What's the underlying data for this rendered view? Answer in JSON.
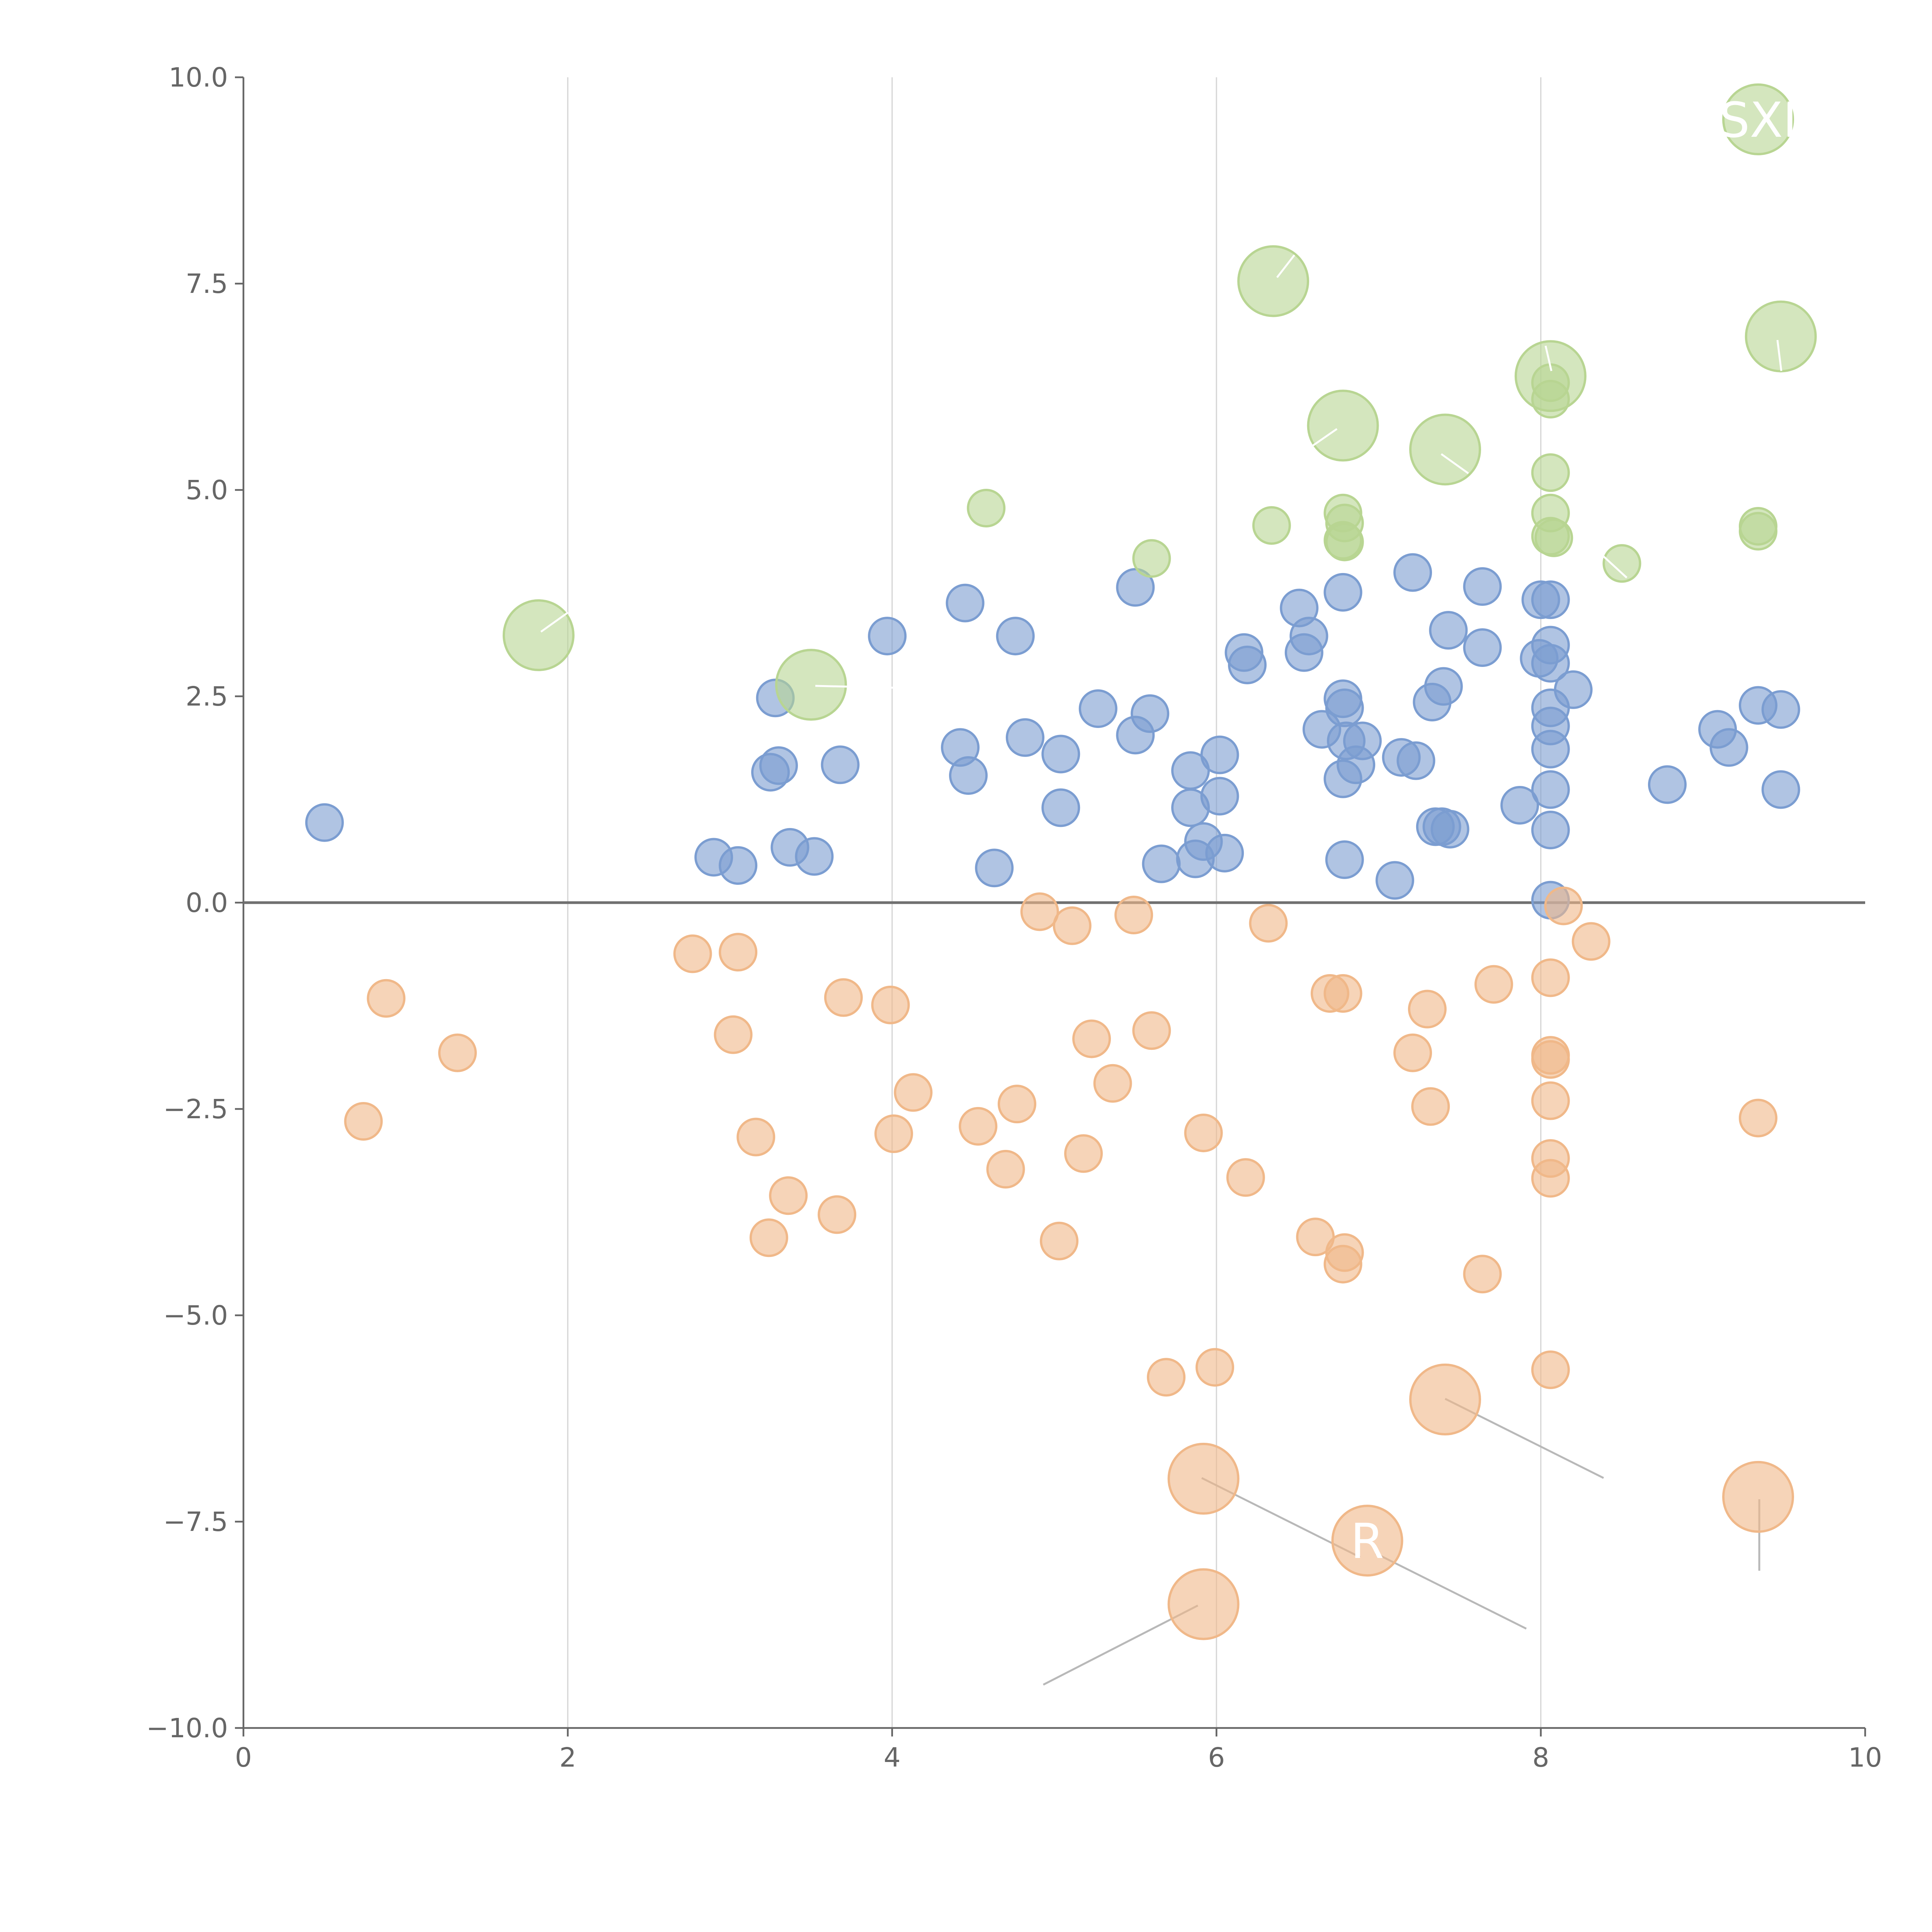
{
  "chart_data": {
    "type": "scatter",
    "title": "",
    "xlabel": "",
    "ylabel": "",
    "xlim": [
      0,
      10
    ],
    "ylim": [
      -10,
      10
    ],
    "x_ticks": [
      "0",
      "2",
      "4",
      "6",
      "8",
      "10"
    ],
    "y_ticks": [
      "10.0",
      "7.5",
      "5.0",
      "2.5",
      "0.0",
      "−2.5",
      "−5.0",
      "−7.5",
      "−10.0"
    ],
    "grid": "vertical",
    "legend": "none",
    "series": [
      {
        "color": "#7b9dd1",
        "size": "small",
        "points": [
          [
            0.5,
            0.97
          ],
          [
            2.9,
            0.55
          ],
          [
            3.05,
            0.45
          ],
          [
            3.25,
            1.58
          ],
          [
            3.3,
            1.66
          ],
          [
            3.28,
            2.48
          ],
          [
            3.37,
            0.67
          ],
          [
            3.52,
            0.56
          ],
          [
            3.68,
            1.67
          ],
          [
            3.97,
            3.23
          ],
          [
            4.42,
            1.88
          ],
          [
            4.45,
            3.63
          ],
          [
            4.47,
            1.54
          ],
          [
            4.63,
            0.42
          ],
          [
            4.76,
            3.23
          ],
          [
            4.82,
            2.0
          ],
          [
            5.04,
            1.8
          ],
          [
            5.04,
            1.15
          ],
          [
            5.27,
            2.35
          ],
          [
            5.5,
            3.82
          ],
          [
            5.5,
            2.03
          ],
          [
            5.59,
            2.29
          ],
          [
            5.66,
            0.47
          ],
          [
            5.84,
            1.6
          ],
          [
            5.84,
            1.15
          ],
          [
            5.87,
            0.53
          ],
          [
            5.92,
            0.74
          ],
          [
            6.02,
            1.79
          ],
          [
            6.02,
            1.29
          ],
          [
            6.05,
            0.6
          ],
          [
            6.17,
            3.03
          ],
          [
            6.19,
            2.88
          ],
          [
            6.51,
            3.57
          ],
          [
            6.54,
            3.03
          ],
          [
            6.57,
            3.23
          ],
          [
            6.65,
            2.1
          ],
          [
            6.78,
            3.76
          ],
          [
            6.78,
            2.47
          ],
          [
            6.79,
            2.36
          ],
          [
            6.8,
            1.96
          ],
          [
            6.78,
            1.5
          ],
          [
            6.79,
            0.52
          ],
          [
            6.86,
            1.67
          ],
          [
            6.9,
            1.96
          ],
          [
            7.1,
            0.27
          ],
          [
            7.14,
            1.76
          ],
          [
            7.23,
            1.72
          ],
          [
            7.21,
            4.0
          ],
          [
            7.33,
            2.43
          ],
          [
            7.4,
            2.62
          ],
          [
            7.43,
            3.3
          ],
          [
            7.35,
            0.92
          ],
          [
            7.39,
            0.92
          ],
          [
            7.44,
            0.89
          ],
          [
            7.64,
            3.83
          ],
          [
            7.64,
            3.09
          ],
          [
            7.87,
            1.18
          ],
          [
            7.99,
            2.96
          ],
          [
            8.0,
            3.67
          ],
          [
            8.06,
            3.67
          ],
          [
            8.06,
            3.12
          ],
          [
            8.06,
            2.9
          ],
          [
            8.06,
            2.36
          ],
          [
            8.06,
            2.14
          ],
          [
            8.06,
            1.86
          ],
          [
            8.06,
            1.37
          ],
          [
            8.06,
            0.88
          ],
          [
            8.06,
            0.03
          ],
          [
            8.2,
            2.58
          ],
          [
            8.78,
            1.43
          ],
          [
            9.09,
            2.1
          ],
          [
            9.16,
            1.88
          ],
          [
            9.34,
            2.39
          ],
          [
            9.48,
            2.34
          ],
          [
            9.48,
            1.37
          ]
        ]
      },
      {
        "color": "#f0b889",
        "size": "small",
        "points": [
          [
            0.88,
            -1.16
          ],
          [
            0.74,
            -2.65
          ],
          [
            1.32,
            -1.82
          ],
          [
            2.77,
            -0.62
          ],
          [
            3.05,
            -0.6
          ],
          [
            3.02,
            -1.6
          ],
          [
            3.16,
            -2.84
          ],
          [
            3.24,
            -4.06
          ],
          [
            3.36,
            -3.55
          ],
          [
            3.7,
            -1.15
          ],
          [
            3.66,
            -3.78
          ],
          [
            3.99,
            -1.24
          ],
          [
            4.01,
            -2.8
          ],
          [
            4.13,
            -2.3
          ],
          [
            4.53,
            -2.71
          ],
          [
            4.7,
            -3.23
          ],
          [
            4.77,
            -2.44
          ],
          [
            4.91,
            -0.11
          ],
          [
            5.11,
            -0.28
          ],
          [
            5.23,
            -1.65
          ],
          [
            5.18,
            -3.04
          ],
          [
            5.03,
            -4.1
          ],
          [
            5.36,
            -2.19
          ],
          [
            5.49,
            -0.15
          ],
          [
            5.6,
            -1.55
          ],
          [
            5.69,
            -5.75
          ],
          [
            5.92,
            -2.79
          ],
          [
            5.99,
            -5.63
          ],
          [
            6.18,
            -3.33
          ],
          [
            6.32,
            -0.25
          ],
          [
            6.61,
            -4.05
          ],
          [
            6.7,
            -1.1
          ],
          [
            6.78,
            -1.1
          ],
          [
            6.79,
            -4.24
          ],
          [
            6.78,
            -4.38
          ],
          [
            7.21,
            -1.82
          ],
          [
            7.3,
            -1.29
          ],
          [
            7.32,
            -2.47
          ],
          [
            7.64,
            -4.5
          ],
          [
            7.71,
            -0.99
          ],
          [
            8.06,
            -0.91
          ],
          [
            8.06,
            -1.85
          ],
          [
            8.06,
            -1.9
          ],
          [
            8.06,
            -2.4
          ],
          [
            8.06,
            -3.1
          ],
          [
            8.06,
            -3.34
          ],
          [
            8.06,
            -5.66
          ],
          [
            8.14,
            -0.04
          ],
          [
            8.31,
            -0.47
          ],
          [
            9.34,
            -2.61
          ]
        ]
      },
      {
        "color": "#b8d592",
        "size": "small",
        "points": [
          [
            4.58,
            4.78
          ],
          [
            5.6,
            4.17
          ],
          [
            6.34,
            4.57
          ],
          [
            6.78,
            4.72
          ],
          [
            6.79,
            4.6
          ],
          [
            6.78,
            4.39
          ],
          [
            6.79,
            4.37
          ],
          [
            8.06,
            6.3
          ],
          [
            8.06,
            6.1
          ],
          [
            8.06,
            5.21
          ],
          [
            8.06,
            4.72
          ],
          [
            8.06,
            4.44
          ],
          [
            8.08,
            4.42
          ],
          [
            8.5,
            4.11
          ],
          [
            9.34,
            4.56
          ],
          [
            9.34,
            4.5
          ]
        ]
      }
    ],
    "bubbles": [
      {
        "x": 1.82,
        "y": 3.24,
        "color": "#b8d592",
        "label": ""
      },
      {
        "x": 3.5,
        "y": 2.64,
        "color": "#b8d592",
        "label": ""
      },
      {
        "x": 6.35,
        "y": 7.53,
        "color": "#b8d592",
        "label": ""
      },
      {
        "x": 6.78,
        "y": 5.78,
        "color": "#b8d592",
        "label": ""
      },
      {
        "x": 7.41,
        "y": 5.49,
        "color": "#b8d592",
        "label": ""
      },
      {
        "x": 8.06,
        "y": 6.38,
        "color": "#b8d592",
        "label": ""
      },
      {
        "x": 9.34,
        "y": 9.49,
        "color": "#b8d592",
        "label": "SXI"
      },
      {
        "x": 9.48,
        "y": 6.86,
        "color": "#b8d592",
        "label": ""
      },
      {
        "x": 5.92,
        "y": -6.98,
        "color": "#f0b889",
        "label": ""
      },
      {
        "x": 5.92,
        "y": -8.5,
        "color": "#f0b889",
        "label": ""
      },
      {
        "x": 6.93,
        "y": -7.73,
        "color": "#f0b889",
        "label": "R"
      },
      {
        "x": 7.41,
        "y": -6.02,
        "color": "#f0b889",
        "label": ""
      },
      {
        "x": 9.34,
        "y": -7.2,
        "color": "#f0b889",
        "label": ""
      }
    ]
  }
}
